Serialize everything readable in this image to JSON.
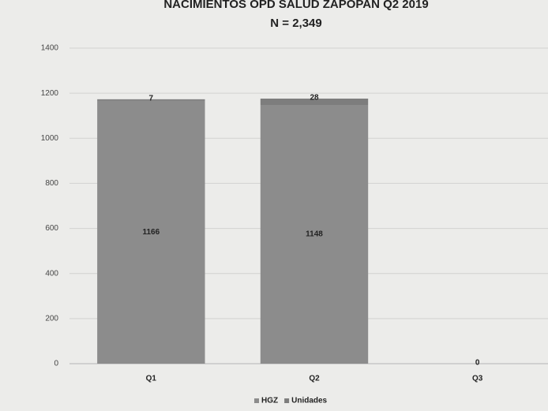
{
  "chart_data": {
    "type": "stacked_bar",
    "title": "NACIMIENTOS OPD SALUD ZAPOPAN Q2 2019",
    "subtitle": "N = 2,349",
    "categories": [
      "Q1",
      "Q2",
      "Q3"
    ],
    "series": [
      {
        "name": "HGZ",
        "color": "#8c8c8c",
        "values": [
          1166,
          1148,
          0
        ]
      },
      {
        "name": "Unidades",
        "color": "#7d7d7d",
        "values": [
          7,
          28,
          0
        ]
      }
    ],
    "ylim": [
      0,
      1400
    ],
    "yticks": [
      0,
      200,
      400,
      600,
      800,
      1000,
      1200,
      1400
    ],
    "grid": true,
    "legend": "bottom"
  }
}
